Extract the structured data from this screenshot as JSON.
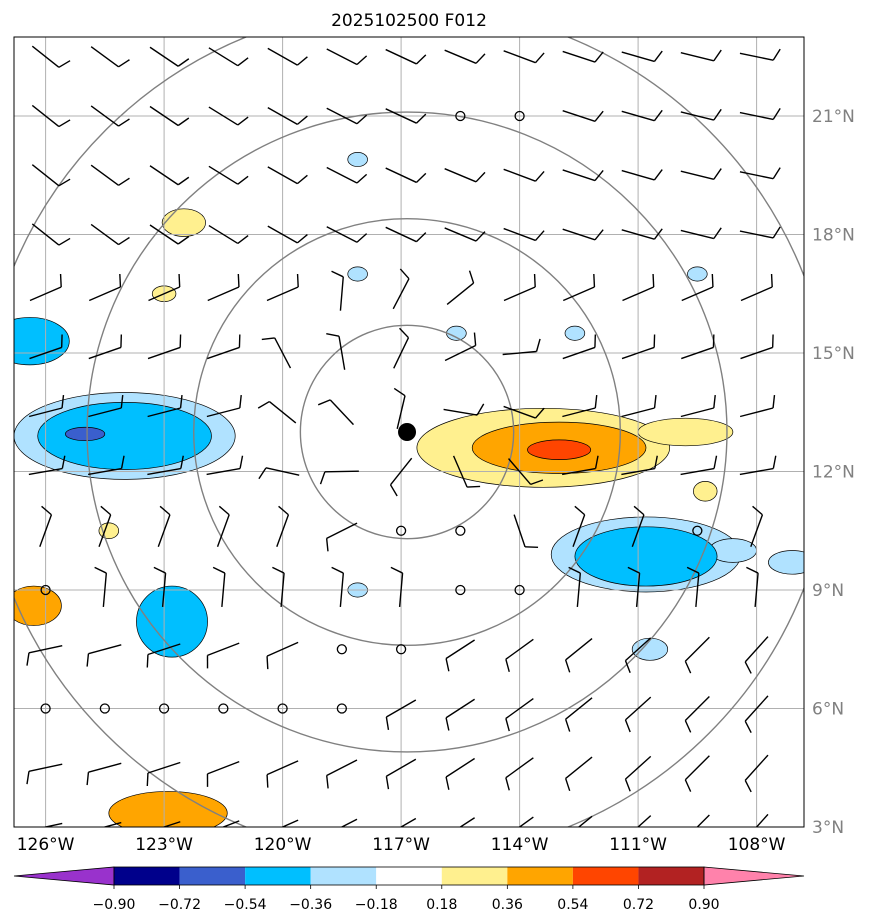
{
  "chart_data": {
    "type": "contour-map",
    "title": "2025102500 F012",
    "x_ticks": [
      "126°W",
      "123°W",
      "120°W",
      "117°W",
      "114°W",
      "111°W",
      "108°W"
    ],
    "x_tick_values": [
      -126,
      -123,
      -120,
      -117,
      -114,
      -111,
      -108
    ],
    "y_ticks": [
      "3°N",
      "6°N",
      "9°N",
      "12°N",
      "15°N",
      "18°N",
      "21°N"
    ],
    "y_tick_values": [
      3,
      6,
      9,
      12,
      15,
      18,
      21
    ],
    "xlim": [
      -126.8,
      -106.8
    ],
    "ylim": [
      3.0,
      23.0
    ],
    "center": {
      "lon": -116.85,
      "lat": 13.0
    },
    "range_ring_radii_deg": [
      2.7,
      5.4,
      8.1,
      10.8
    ],
    "colorbar": {
      "levels": [
        "−0.90",
        "−0.72",
        "−0.54",
        "−0.36",
        "−0.18",
        "0.18",
        "0.36",
        "0.54",
        "0.72",
        "0.90"
      ],
      "colors": [
        "#9932cc",
        "#00008b",
        "#3a5fcd",
        "#00bfff",
        "#b0e2ff",
        "#ffffff",
        "#fff08f",
        "#ffa500",
        "#ff4500",
        "#b22222",
        "#ff82ab"
      ],
      "extend": "both"
    },
    "anomaly_regions": [
      {
        "name": "east-positive",
        "lon": -113.4,
        "lat": 12.6,
        "level": 0.36,
        "rx": 3.2,
        "ry": 1.0
      },
      {
        "name": "east-positive-core",
        "lon": -113.0,
        "lat": 12.6,
        "level": 0.54,
        "rx": 2.2,
        "ry": 0.65
      },
      {
        "name": "east-positive-peak",
        "lon": -113.0,
        "lat": 12.55,
        "level": 0.72,
        "rx": 0.8,
        "ry": 0.25
      },
      {
        "name": "west-negative",
        "lon": -124.0,
        "lat": 12.9,
        "level": -0.36,
        "rx": 2.8,
        "ry": 1.1
      },
      {
        "name": "west-negative-core",
        "lon": -124.0,
        "lat": 12.9,
        "level": -0.54,
        "rx": 2.2,
        "ry": 0.85
      },
      {
        "name": "west-negative-peak",
        "lon": -125.0,
        "lat": 12.95,
        "level": -0.72,
        "rx": 0.5,
        "ry": 0.17
      },
      {
        "name": "southeast-negative",
        "lon": -110.8,
        "lat": 9.9,
        "level": -0.36,
        "rx": 2.4,
        "ry": 0.95
      },
      {
        "name": "southeast-negative-core",
        "lon": -110.8,
        "lat": 9.85,
        "level": -0.54,
        "rx": 1.8,
        "ry": 0.75
      },
      {
        "name": "edge-negative",
        "lon": -126.4,
        "lat": 15.3,
        "level": -0.54,
        "rx": 1.0,
        "ry": 0.6
      },
      {
        "name": "south-negative",
        "lon": -122.8,
        "lat": 8.2,
        "level": -0.54,
        "rx": 0.9,
        "ry": 0.9
      },
      {
        "name": "southwest-positive",
        "lon": -126.3,
        "lat": 8.6,
        "level": 0.54,
        "rx": 0.7,
        "ry": 0.5
      },
      {
        "name": "bottom-positive",
        "lon": -122.9,
        "lat": 3.35,
        "level": 0.54,
        "rx": 1.5,
        "ry": 0.55
      },
      {
        "name": "northeast-positive",
        "lon": -109.8,
        "lat": 13.0,
        "level": 0.36,
        "rx": 1.2,
        "ry": 0.35
      },
      {
        "name": "small-positive-1",
        "lon": -122.5,
        "lat": 18.3,
        "level": 0.36,
        "rx": 0.55,
        "ry": 0.35
      },
      {
        "name": "small-positive-2",
        "lon": -123.0,
        "lat": 16.5,
        "level": 0.36,
        "rx": 0.3,
        "ry": 0.2
      },
      {
        "name": "small-positive-3",
        "lon": -109.3,
        "lat": 11.5,
        "level": 0.36,
        "rx": 0.3,
        "ry": 0.25
      },
      {
        "name": "small-positive-4",
        "lon": -124.4,
        "lat": 10.5,
        "level": 0.36,
        "rx": 0.25,
        "ry": 0.2
      },
      {
        "name": "small-negative-1",
        "lon": -118.1,
        "lat": 19.9,
        "level": -0.36,
        "rx": 0.25,
        "ry": 0.18
      },
      {
        "name": "small-negative-2",
        "lon": -118.1,
        "lat": 17.0,
        "level": -0.36,
        "rx": 0.25,
        "ry": 0.18
      },
      {
        "name": "small-negative-3",
        "lon": -115.6,
        "lat": 15.5,
        "level": -0.36,
        "rx": 0.25,
        "ry": 0.18
      },
      {
        "name": "small-negative-4",
        "lon": -112.6,
        "lat": 15.5,
        "level": -0.36,
        "rx": 0.25,
        "ry": 0.18
      },
      {
        "name": "small-negative-5",
        "lon": -109.5,
        "lat": 17.0,
        "level": -0.36,
        "rx": 0.25,
        "ry": 0.18
      },
      {
        "name": "small-negative-6",
        "lon": -118.1,
        "lat": 9.0,
        "level": -0.36,
        "rx": 0.25,
        "ry": 0.18
      },
      {
        "name": "small-negative-7",
        "lon": -110.7,
        "lat": 7.5,
        "level": -0.36,
        "rx": 0.45,
        "ry": 0.28
      },
      {
        "name": "small-negative-8",
        "lon": -108.6,
        "lat": 10.0,
        "level": -0.36,
        "rx": 0.6,
        "ry": 0.3
      },
      {
        "name": "edge-negative-2",
        "lon": -107.1,
        "lat": 9.7,
        "level": -0.36,
        "rx": 0.6,
        "ry": 0.3
      }
    ],
    "wind_barbs": {
      "note": "grid of wind barbs; u/v are schematic directions (data units: knots-like)",
      "lons": [
        -126,
        -124.5,
        -123,
        -121.5,
        -120,
        -118.5,
        -117,
        -115.5,
        -114,
        -112.5,
        -111,
        -109.5,
        -108
      ],
      "lats": [
        3,
        4.5,
        6,
        7.5,
        9,
        10.5,
        12,
        13.5,
        15,
        16.5,
        18,
        19.5,
        21,
        22.5
      ],
      "calm": [
        {
          "lon": -126,
          "lat": 6
        },
        {
          "lon": -124.5,
          "lat": 6
        },
        {
          "lon": -123,
          "lat": 6
        },
        {
          "lon": -121.5,
          "lat": 6
        },
        {
          "lon": -120,
          "lat": 6
        },
        {
          "lon": -118.5,
          "lat": 6
        },
        {
          "lon": -118.5,
          "lat": 7.5
        },
        {
          "lon": -117,
          "lat": 7.5
        },
        {
          "lon": -126,
          "lat": 9
        },
        {
          "lon": -115.5,
          "lat": 9
        },
        {
          "lon": -114,
          "lat": 9
        },
        {
          "lon": -117,
          "lat": 10.5
        },
        {
          "lon": -115.5,
          "lat": 10.5
        },
        {
          "lon": -109.5,
          "lat": 10.5
        },
        {
          "lon": -115.5,
          "lat": 21
        },
        {
          "lon": -114,
          "lat": 21
        }
      ]
    }
  }
}
